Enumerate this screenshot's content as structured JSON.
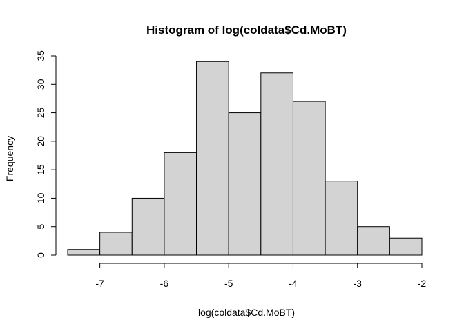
{
  "chart_data": {
    "type": "bar",
    "title": "Histogram of log(coldata$Cd.MoBT)",
    "xlabel": "log(coldata$Cd.MoBT)",
    "ylabel": "Frequency",
    "bin_edges": [
      -7.5,
      -7.0,
      -6.5,
      -6.0,
      -5.5,
      -5.0,
      -4.5,
      -4.0,
      -3.5,
      -3.0,
      -2.5,
      -2.0
    ],
    "values": [
      1,
      4,
      10,
      18,
      34,
      25,
      32,
      27,
      13,
      5,
      3
    ],
    "xlim": [
      -7.5,
      -2.0
    ],
    "ylim": [
      0,
      35
    ],
    "xticks": [
      -7,
      -6,
      -5,
      -4,
      -3,
      -2
    ],
    "yticks": [
      0,
      5,
      10,
      15,
      20,
      25,
      30,
      35
    ],
    "grid": false,
    "bar_color": "#d3d3d3"
  }
}
